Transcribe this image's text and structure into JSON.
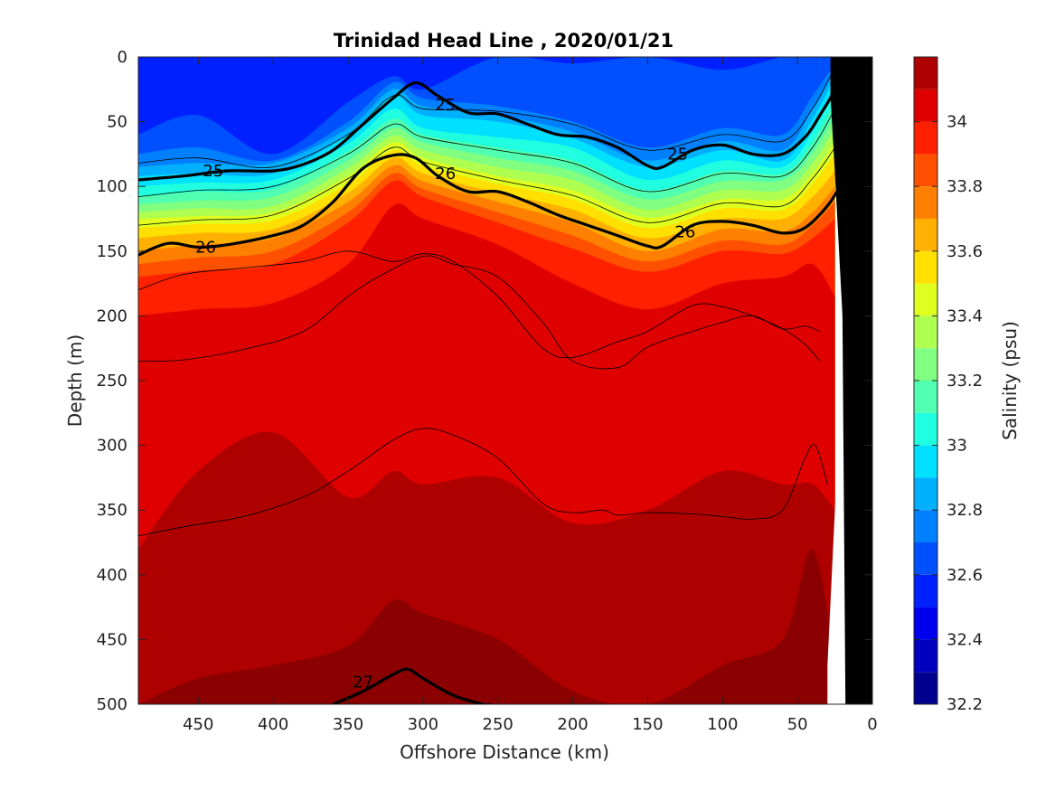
{
  "chart_data": {
    "type": "heatmap",
    "title": "Trinidad Head Line , 2020/01/21",
    "xlabel": "Offshore Distance (km)",
    "ylabel": "Depth (m)",
    "colorbar_label": "Salinity (psu)",
    "x_reversed": true,
    "xlim": [
      490,
      0
    ],
    "ylim": [
      0,
      500
    ],
    "y_reversed": true,
    "x_ticks": [
      450,
      400,
      350,
      300,
      250,
      200,
      150,
      100,
      50,
      0
    ],
    "y_ticks": [
      0,
      50,
      100,
      150,
      200,
      250,
      300,
      350,
      400,
      450,
      500
    ],
    "colorbar_range": [
      32.2,
      34.2
    ],
    "colorbar_ticks": [
      "34",
      "33.8",
      "33.6",
      "33.4",
      "33.2",
      "33",
      "32.8",
      "32.6",
      "32.4",
      "32.2"
    ],
    "colorbar_tick_values": [
      34.0,
      33.8,
      33.6,
      33.4,
      33.2,
      33.0,
      32.8,
      32.6,
      32.4,
      32.2
    ],
    "colorbar_levels": [
      {
        "from": 32.2,
        "to": 32.3,
        "color": "#00008f"
      },
      {
        "from": 32.3,
        "to": 32.4,
        "color": "#0000bf"
      },
      {
        "from": 32.4,
        "to": 32.5,
        "color": "#0000ef"
      },
      {
        "from": 32.5,
        "to": 32.6,
        "color": "#0020ff"
      },
      {
        "from": 32.6,
        "to": 32.7,
        "color": "#0050ff"
      },
      {
        "from": 32.7,
        "to": 32.8,
        "color": "#0080ff"
      },
      {
        "from": 32.8,
        "to": 32.9,
        "color": "#00b0ff"
      },
      {
        "from": 32.9,
        "to": 33.0,
        "color": "#00e0ff"
      },
      {
        "from": 33.0,
        "to": 33.1,
        "color": "#20ffdf"
      },
      {
        "from": 33.1,
        "to": 33.2,
        "color": "#50ffaf"
      },
      {
        "from": 33.2,
        "to": 33.3,
        "color": "#80ff80"
      },
      {
        "from": 33.3,
        "to": 33.4,
        "color": "#afff50"
      },
      {
        "from": 33.4,
        "to": 33.5,
        "color": "#dfff20"
      },
      {
        "from": 33.5,
        "to": 33.6,
        "color": "#ffe000"
      },
      {
        "from": 33.6,
        "to": 33.7,
        "color": "#ffb000"
      },
      {
        "from": 33.7,
        "to": 33.8,
        "color": "#ff8000"
      },
      {
        "from": 33.8,
        "to": 33.9,
        "color": "#ff5000"
      },
      {
        "from": 33.9,
        "to": 34.0,
        "color": "#ff2000"
      },
      {
        "from": 34.0,
        "to": 34.1,
        "color": "#df0000"
      },
      {
        "from": 34.1,
        "to": 34.2,
        "color": "#af0000"
      }
    ],
    "salinity_section": {
      "x_km": [
        490,
        450,
        400,
        350,
        320,
        300,
        250,
        200,
        150,
        100,
        60,
        40,
        25
      ],
      "layers": [
        {
          "salinity_min": 32.5,
          "color": "#0020ff",
          "top_depth": [
            0,
            0,
            0,
            0,
            0,
            0,
            0,
            0,
            0,
            0,
            0,
            0,
            0
          ]
        },
        {
          "salinity_min": 32.6,
          "color": "#0050ff",
          "top_depth": [
            60,
            45,
            75,
            35,
            15,
            25,
            0,
            5,
            0,
            10,
            0,
            0,
            0
          ]
        },
        {
          "salinity_min": 32.7,
          "color": "#0080ff",
          "top_depth": [
            75,
            70,
            80,
            50,
            20,
            32,
            38,
            50,
            70,
            55,
            60,
            30,
            5
          ]
        },
        {
          "salinity_min": 32.8,
          "color": "#00b0ff",
          "top_depth": [
            85,
            82,
            82,
            55,
            25,
            38,
            45,
            58,
            80,
            65,
            72,
            40,
            10
          ]
        },
        {
          "salinity_min": 32.9,
          "color": "#00e0ff",
          "top_depth": [
            92,
            90,
            90,
            60,
            30,
            45,
            50,
            63,
            85,
            72,
            80,
            48,
            15
          ]
        },
        {
          "salinity_min": 33.0,
          "color": "#20ffdf",
          "top_depth": [
            100,
            97,
            95,
            67,
            40,
            55,
            62,
            70,
            95,
            80,
            85,
            58,
            25
          ]
        },
        {
          "salinity_min": 33.1,
          "color": "#50ffaf",
          "top_depth": [
            108,
            104,
            102,
            73,
            48,
            60,
            70,
            80,
            103,
            88,
            90,
            66,
            35
          ]
        },
        {
          "salinity_min": 33.2,
          "color": "#80ff80",
          "top_depth": [
            114,
            111,
            108,
            80,
            55,
            66,
            78,
            88,
            110,
            96,
            95,
            74,
            45
          ]
        },
        {
          "salinity_min": 33.3,
          "color": "#afff50",
          "top_depth": [
            120,
            117,
            115,
            86,
            61,
            72,
            85,
            95,
            118,
            103,
            103,
            82,
            55
          ]
        },
        {
          "salinity_min": 33.4,
          "color": "#dfff20",
          "top_depth": [
            125,
            123,
            120,
            92,
            66,
            78,
            92,
            103,
            124,
            110,
            110,
            90,
            65
          ]
        },
        {
          "salinity_min": 33.5,
          "color": "#ffe000",
          "top_depth": [
            132,
            129,
            126,
            98,
            72,
            84,
            98,
            110,
            132,
            117,
            118,
            98,
            75
          ]
        },
        {
          "salinity_min": 33.6,
          "color": "#ffb000",
          "top_depth": [
            140,
            136,
            133,
            105,
            78,
            90,
            105,
            118,
            140,
            125,
            125,
            108,
            88
          ]
        },
        {
          "salinity_min": 33.7,
          "color": "#ff8000",
          "top_depth": [
            150,
            145,
            140,
            112,
            84,
            96,
            112,
            128,
            150,
            133,
            135,
            120,
            100
          ]
        },
        {
          "salinity_min": 33.8,
          "color": "#ff5000",
          "top_depth": [
            160,
            155,
            150,
            120,
            90,
            102,
            120,
            138,
            158,
            142,
            145,
            130,
            112
          ]
        },
        {
          "salinity_min": 33.9,
          "color": "#ff2000",
          "top_depth": [
            170,
            165,
            160,
            128,
            96,
            108,
            128,
            148,
            166,
            150,
            152,
            140,
            125
          ]
        },
        {
          "salinity_min": 34.0,
          "color": "#df0000",
          "top_depth": [
            200,
            195,
            190,
            160,
            115,
            125,
            145,
            175,
            195,
            175,
            170,
            160,
            185
          ]
        },
        {
          "salinity_min": 34.1,
          "color": "#af0000",
          "top_depth": [
            380,
            320,
            290,
            340,
            320,
            330,
            325,
            360,
            350,
            320,
            330,
            330,
            350
          ]
        },
        {
          "salinity_min": 34.2,
          "color": "#8b0000",
          "top_depth": [
            500,
            480,
            470,
            455,
            420,
            430,
            450,
            490,
            500,
            470,
            450,
            380,
            470
          ]
        }
      ]
    },
    "isopycnals": [
      {
        "label": "25",
        "label_positions_km": [
          [
            440,
            88
          ],
          [
            285,
            37
          ],
          [
            130,
            75
          ]
        ],
        "x_km": [
          490,
          460,
          430,
          400,
          380,
          360,
          340,
          320,
          305,
          290,
          270,
          250,
          230,
          210,
          190,
          170,
          150,
          140,
          120,
          100,
          80,
          60,
          45,
          35,
          25,
          20
        ],
        "depth": [
          95,
          92,
          88,
          88,
          83,
          72,
          52,
          32,
          20,
          30,
          43,
          44,
          52,
          60,
          62,
          70,
          84,
          85,
          72,
          68,
          75,
          75,
          62,
          45,
          25,
          5
        ],
        "bold": true
      },
      {
        "label": "26",
        "label_positions_km": [
          [
            445,
            147
          ],
          [
            285,
            90
          ],
          [
            125,
            135
          ]
        ],
        "x_km": [
          490,
          470,
          450,
          430,
          400,
          380,
          360,
          340,
          320,
          305,
          290,
          270,
          250,
          230,
          210,
          190,
          170,
          150,
          140,
          120,
          100,
          80,
          60,
          45,
          30,
          20
        ],
        "depth": [
          153,
          144,
          147,
          145,
          138,
          130,
          112,
          86,
          76,
          78,
          92,
          104,
          104,
          112,
          122,
          130,
          138,
          146,
          146,
          130,
          127,
          130,
          136,
          132,
          115,
          97
        ],
        "bold": true
      },
      {
        "label": "27",
        "label_positions_km": [
          [
            340,
            483
          ]
        ],
        "x_km": [
          360,
          340,
          320,
          310,
          300,
          280,
          260,
          255
        ],
        "depth": [
          500,
          490,
          477,
          473,
          480,
          493,
          500,
          500
        ],
        "bold": true
      }
    ],
    "thin_contours": [
      {
        "x_km": [
          490,
          450,
          400,
          350,
          320,
          300,
          250,
          200,
          150,
          100,
          60,
          40,
          25
        ],
        "depth": [
          82,
          78,
          85,
          60,
          30,
          40,
          42,
          52,
          72,
          60,
          65,
          40,
          8
        ]
      },
      {
        "x_km": [
          490,
          450,
          400,
          350,
          320,
          300,
          250,
          200,
          150,
          100,
          60,
          40,
          25
        ],
        "depth": [
          108,
          103,
          100,
          75,
          52,
          62,
          72,
          82,
          104,
          90,
          92,
          70,
          40
        ]
      },
      {
        "x_km": [
          490,
          450,
          400,
          350,
          320,
          300,
          250,
          200,
          150,
          100,
          60,
          40,
          25
        ],
        "depth": [
          130,
          126,
          122,
          94,
          70,
          81,
          95,
          107,
          128,
          113,
          115,
          94,
          70
        ]
      },
      {
        "x_km": [
          490,
          460,
          420,
          380,
          350,
          320,
          300,
          280,
          250,
          220,
          200,
          170,
          150,
          120,
          100,
          80,
          60,
          45,
          35
        ],
        "depth": [
          180,
          168,
          163,
          158,
          150,
          158,
          152,
          158,
          185,
          225,
          232,
          220,
          212,
          192,
          193,
          200,
          210,
          222,
          235
        ]
      },
      {
        "x_km": [
          490,
          460,
          420,
          380,
          350,
          330,
          300,
          280,
          250,
          220,
          200,
          170,
          150,
          120,
          100,
          80,
          60,
          45,
          35
        ],
        "depth": [
          235,
          234,
          226,
          212,
          185,
          170,
          154,
          160,
          170,
          205,
          235,
          240,
          224,
          212,
          205,
          200,
          210,
          208,
          212
        ]
      },
      {
        "x_km": [
          490,
          460,
          420,
          380,
          350,
          320,
          300,
          280,
          250,
          220,
          200,
          180,
          170,
          150,
          120,
          100,
          80,
          60,
          45,
          38,
          30
        ],
        "depth": [
          370,
          363,
          355,
          340,
          320,
          296,
          287,
          292,
          310,
          345,
          352,
          350,
          354,
          352,
          353,
          355,
          357,
          350,
          310,
          300,
          330
        ]
      }
    ],
    "masks": [
      {
        "type": "no-data",
        "color": "#ffffff",
        "x_km": [
          30,
          30,
          18,
          15,
          0,
          0,
          18,
          26
        ],
        "depth": [
          500,
          470,
          180,
          5,
          0,
          500,
          500,
          500
        ]
      },
      {
        "type": "bathymetry",
        "color": "#000000",
        "x_km": [
          0,
          0,
          5,
          12,
          18,
          20,
          25,
          28,
          28
        ],
        "depth": [
          0,
          500,
          500,
          500,
          500,
          200,
          90,
          30,
          0
        ]
      }
    ]
  }
}
